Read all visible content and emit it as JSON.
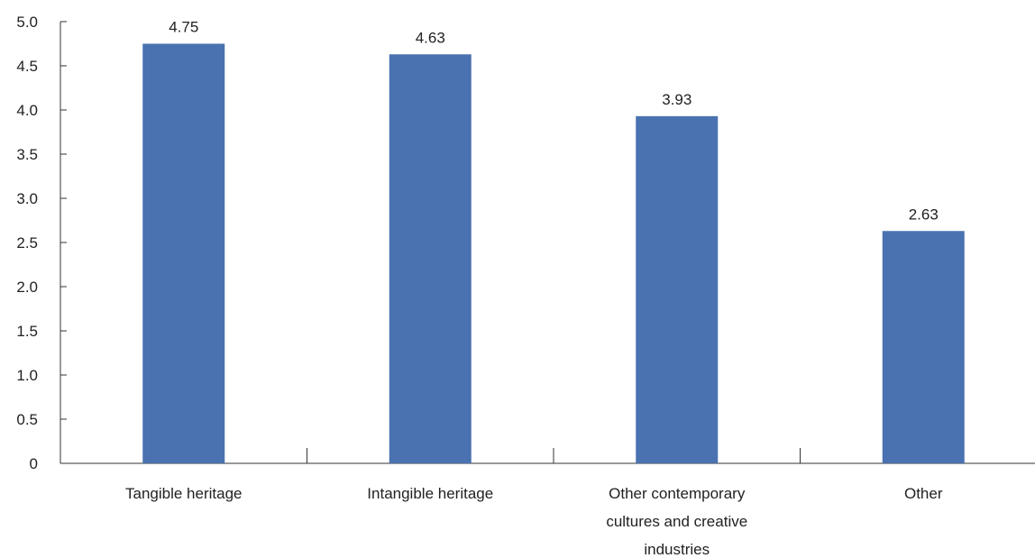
{
  "chart_data": {
    "type": "bar",
    "title": "",
    "xlabel": "",
    "ylabel": "",
    "categories": [
      [
        "Tangible heritage"
      ],
      [
        "Intangible heritage"
      ],
      [
        "Other contemporary",
        "cultures and creative",
        "industries"
      ],
      [
        "Other"
      ]
    ],
    "values": [
      4.75,
      4.63,
      3.93,
      2.63
    ],
    "value_labels": [
      "4.75",
      "4.63",
      "3.93",
      "2.63"
    ],
    "y_ticks": [
      0,
      0.5,
      1.0,
      1.5,
      2.0,
      2.5,
      3.0,
      3.5,
      4.0,
      4.5,
      5.0
    ],
    "y_tick_labels": [
      "0",
      "0.5",
      "1.0",
      "1.5",
      "2.0",
      "2.5",
      "3.0",
      "3.5",
      "4.0",
      "4.5",
      "5.0"
    ],
    "ylim": [
      0,
      5.0
    ],
    "grid": false,
    "legend": "none",
    "bar_color": "#4a72b0"
  }
}
